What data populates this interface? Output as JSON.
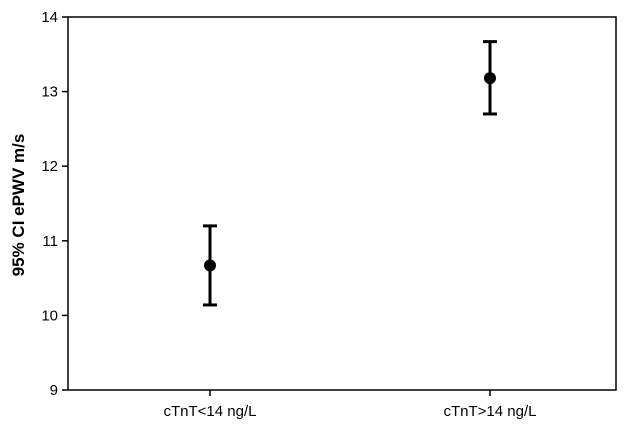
{
  "chart_data": {
    "type": "scatter",
    "title": "",
    "xlabel": "",
    "ylabel": "95% CI ePWV m/s",
    "categories": [
      "cTnT<14 ng/L",
      "cTnT>14 ng/L"
    ],
    "series": [
      {
        "mean": [
          10.67,
          13.18
        ],
        "ci_low": [
          10.14,
          12.7
        ],
        "ci_high": [
          11.2,
          13.67
        ]
      }
    ],
    "ylim": [
      9,
      14
    ],
    "yticks": [
      9,
      10,
      11,
      12,
      13,
      14
    ],
    "grid": false,
    "legend": "none"
  }
}
